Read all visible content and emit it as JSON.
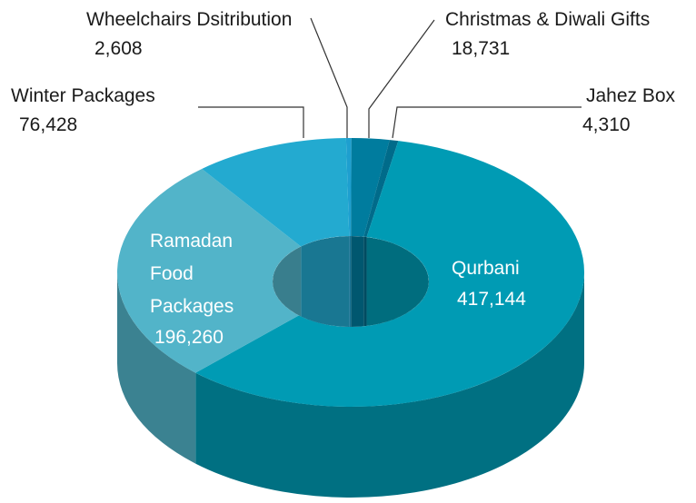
{
  "chart_data": {
    "type": "pie",
    "categories": [
      "Wheelchairs Dsitribution",
      "Christmas & Diwali Gifts",
      "Jahez Box",
      "Qurbani",
      "Ramadan Food Packages",
      "Winter Packages"
    ],
    "values": [
      2608,
      18731,
      4310,
      417144,
      196260,
      76428
    ],
    "value_labels": [
      "2,608",
      "18,731",
      "4,310",
      "417,144",
      "196,260",
      "76,428"
    ],
    "colors": [
      "#1e9fcf",
      "#007c9e",
      "#006b8a",
      "#009bb4",
      "#52b4c9",
      "#23aad0"
    ]
  }
}
